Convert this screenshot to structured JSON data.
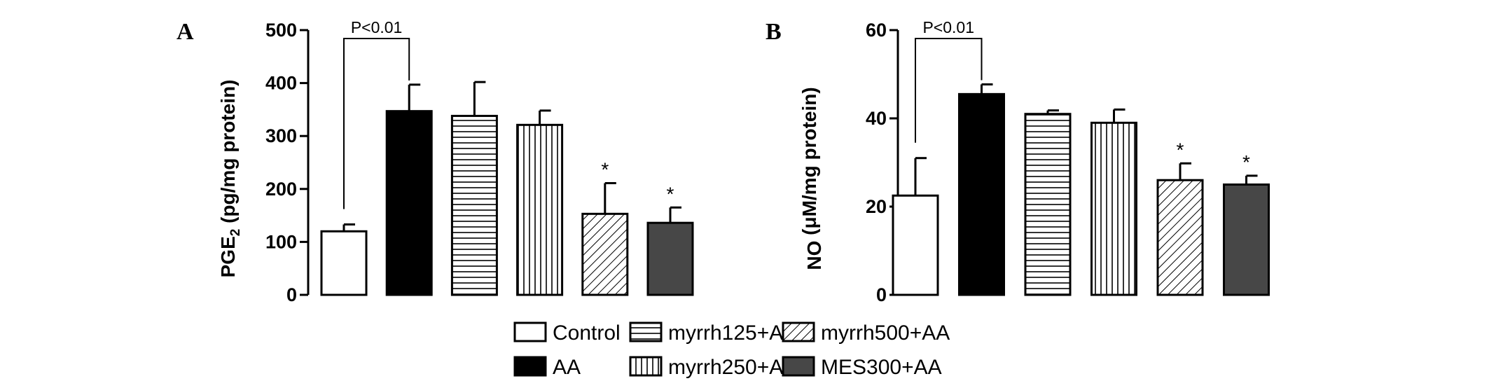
{
  "figure": {
    "panels": [
      "A",
      "B"
    ],
    "legend": [
      {
        "label": "Control",
        "pattern": "white"
      },
      {
        "label": "AA",
        "pattern": "black"
      },
      {
        "label": "myrrh125+AA",
        "pattern": "horizontal-lines"
      },
      {
        "label": "myrrh250+AA",
        "pattern": "vertical-lines"
      },
      {
        "label": "myrrh500+AA",
        "pattern": "diagonal-lines"
      },
      {
        "label": "MES300+AA",
        "pattern": "dark-gray"
      }
    ],
    "colors": {
      "black": "#000000",
      "dark_gray": "#474747",
      "white": "#ffffff"
    }
  },
  "chart_data": [
    {
      "type": "bar",
      "panel": "A",
      "ylabel_main": "PGE",
      "ylabel_sub": "2",
      "ylabel_rest": " (pg/mg protein)",
      "ylim": [
        0,
        500
      ],
      "yticks": [
        0,
        100,
        200,
        300,
        400,
        500
      ],
      "categories": [
        "Control",
        "AA",
        "myrrh125+AA",
        "myrrh250+AA",
        "myrrh500+AA",
        "MES300+AA"
      ],
      "values": [
        120,
        347,
        338,
        321,
        153,
        136
      ],
      "errors": [
        13,
        50,
        64,
        27,
        58,
        29
      ],
      "significance": {
        "label": "P<0.01",
        "between": [
          0,
          1
        ]
      },
      "stars": [
        "",
        "",
        "",
        "",
        "*",
        "*"
      ]
    },
    {
      "type": "bar",
      "panel": "B",
      "ylabel_main": "NO",
      "ylabel_sub": "",
      "ylabel_rest": " (μM/mg protein)",
      "ylim": [
        0,
        60
      ],
      "yticks": [
        0,
        20,
        40,
        60
      ],
      "categories": [
        "Control",
        "AA",
        "myrrh125+AA",
        "myrrh250+AA",
        "myrrh500+AA",
        "MES300+AA"
      ],
      "values": [
        22.5,
        45.5,
        41,
        39,
        26,
        25
      ],
      "errors": [
        8.5,
        2.2,
        0.8,
        3,
        3.8,
        2
      ],
      "significance": {
        "label": "P<0.01",
        "between": [
          0,
          1
        ]
      },
      "stars": [
        "",
        "",
        "",
        "",
        "*",
        "*"
      ]
    }
  ]
}
